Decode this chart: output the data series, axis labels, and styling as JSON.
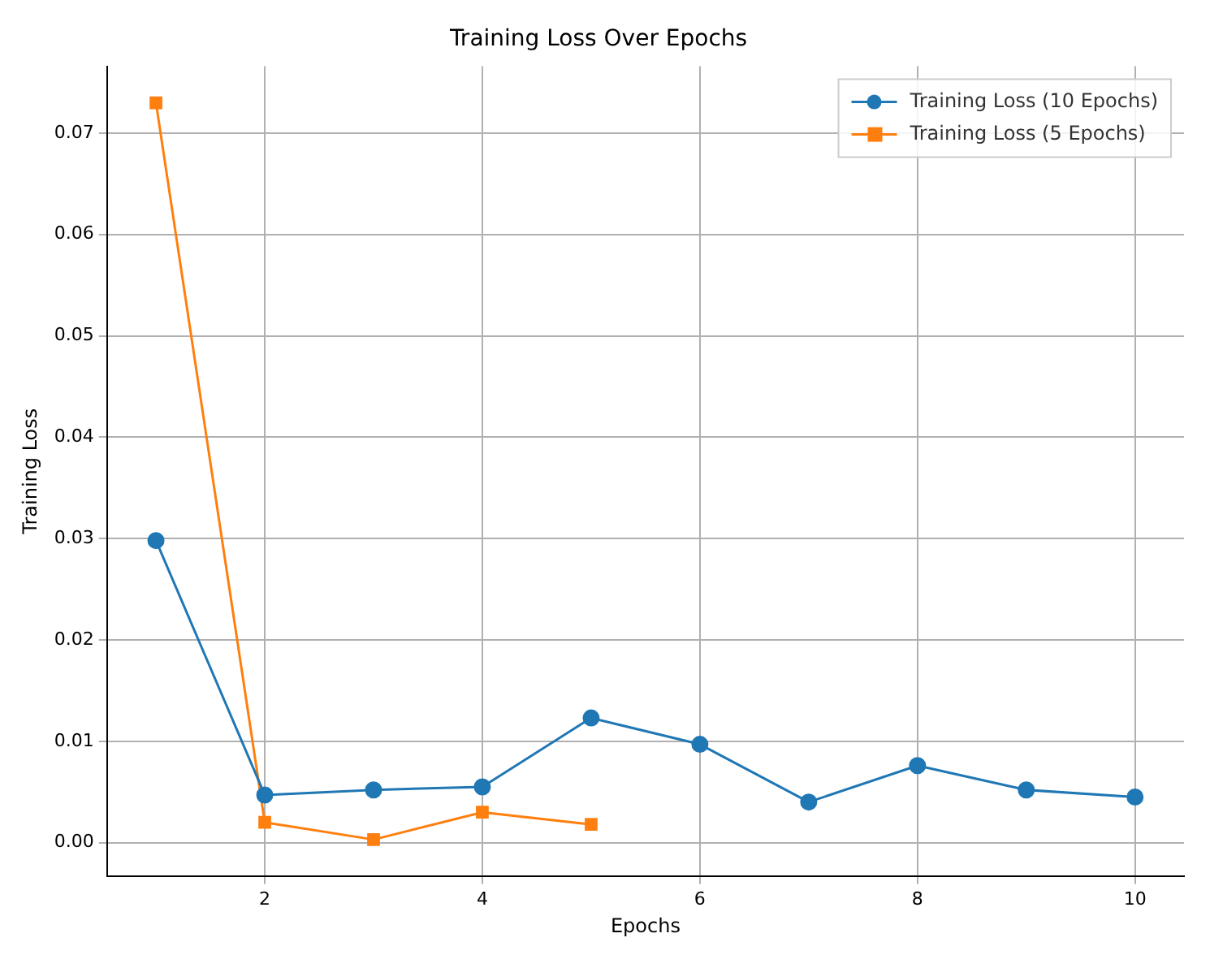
{
  "chart_data": {
    "type": "line",
    "title": "Training Loss Over Epochs",
    "xlabel": "Epochs",
    "ylabel": "Training Loss",
    "xlim": [
      0.55,
      10.45
    ],
    "xticks": [
      2,
      4,
      6,
      8,
      10
    ],
    "ylim": [
      -0.0033,
      0.0766
    ],
    "yticks": [
      {
        "value": 0,
        "label": "0.00"
      },
      {
        "value": 0.01,
        "label": "0.01"
      },
      {
        "value": 0.02,
        "label": "0.02"
      },
      {
        "value": 0.03,
        "label": "0.03"
      },
      {
        "value": 0.04,
        "label": "0.04"
      },
      {
        "value": 0.05,
        "label": "0.05"
      },
      {
        "value": 0.06,
        "label": "0.06"
      },
      {
        "value": 0.07,
        "label": "0.07"
      }
    ],
    "grid": true,
    "legend": "top right",
    "line_style": "solid",
    "series": [
      {
        "name": "Training Loss (10 Epochs)",
        "color": "#1f77b4",
        "marker": "circle",
        "x": [
          1,
          2,
          3,
          4,
          5,
          6,
          7,
          8,
          9,
          10
        ],
        "values": [
          0.0298,
          0.0047,
          0.0052,
          0.0055,
          0.0123,
          0.0097,
          0.004,
          0.0076,
          0.0052,
          0.0045
        ]
      },
      {
        "name": "Training Loss (5 Epochs)",
        "color": "#ff7f0e",
        "marker": "square",
        "x": [
          1,
          2,
          3,
          4,
          5
        ],
        "values": [
          0.073,
          0.002,
          0.0003,
          0.003,
          0.0018
        ]
      }
    ]
  }
}
